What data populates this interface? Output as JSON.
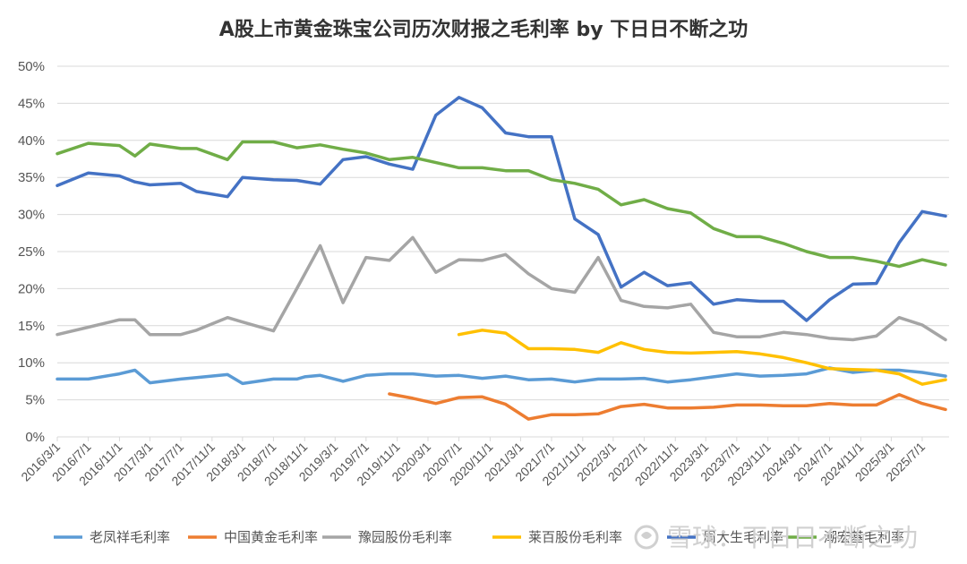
{
  "chart_data": {
    "type": "line",
    "title": "A股上市黄金珠宝公司历次财报之毛利率 by 下日日不断之功",
    "y_ticks": [
      "0%",
      "5%",
      "10%",
      "15%",
      "20%",
      "25%",
      "30%",
      "35%",
      "40%",
      "45%",
      "50%"
    ],
    "ylim": [
      0,
      50
    ],
    "grid": "horizontal",
    "legend_position": "bottom",
    "x_ticks": [
      "2016/3/1",
      "2016/7/1",
      "2016/11/1",
      "2017/3/1",
      "2017/7/1",
      "2017/11/1",
      "2018/3/1",
      "2018/7/1",
      "2018/11/1",
      "2019/3/1",
      "2019/7/1",
      "2019/11/1",
      "2020/3/1",
      "2020/7/1",
      "2020/11/1",
      "2021/3/1",
      "2021/7/1",
      "2021/11/1",
      "2022/3/1",
      "2022/7/1",
      "2022/11/1",
      "2023/3/1",
      "2023/7/1",
      "2023/11/1",
      "2024/3/1",
      "2024/7/1",
      "2024/11/1",
      "2025/3/1",
      "2025/7/1"
    ],
    "series": [
      {
        "name": "老凤祥毛利率",
        "color": "#5B9BD5",
        "points": [
          [
            "2016/3/1",
            7.8
          ],
          [
            "2016/7/1",
            7.8
          ],
          [
            "2016/11/1",
            8.5
          ],
          [
            "2017/1/1",
            9.0
          ],
          [
            "2017/3/1",
            7.3
          ],
          [
            "2017/7/1",
            7.8
          ],
          [
            "2017/9/1",
            8.0
          ],
          [
            "2018/1/1",
            8.4
          ],
          [
            "2018/3/1",
            7.2
          ],
          [
            "2018/7/1",
            7.8
          ],
          [
            "2018/10/1",
            7.8
          ],
          [
            "2018/11/1",
            8.1
          ],
          [
            "2019/1/1",
            8.3
          ],
          [
            "2019/4/1",
            7.5
          ],
          [
            "2019/7/1",
            8.3
          ],
          [
            "2019/10/1",
            8.5
          ],
          [
            "2020/1/1",
            8.5
          ],
          [
            "2020/4/1",
            8.2
          ],
          [
            "2020/7/1",
            8.3
          ],
          [
            "2020/10/1",
            7.9
          ],
          [
            "2021/1/1",
            8.2
          ],
          [
            "2021/4/1",
            7.7
          ],
          [
            "2021/7/1",
            7.8
          ],
          [
            "2021/10/1",
            7.4
          ],
          [
            "2022/1/1",
            7.8
          ],
          [
            "2022/4/1",
            7.8
          ],
          [
            "2022/7/1",
            7.9
          ],
          [
            "2022/10/1",
            7.4
          ],
          [
            "2023/1/1",
            7.7
          ],
          [
            "2023/4/1",
            8.1
          ],
          [
            "2023/7/1",
            8.5
          ],
          [
            "2023/10/1",
            8.2
          ],
          [
            "2024/1/1",
            8.3
          ],
          [
            "2024/4/1",
            8.5
          ],
          [
            "2024/7/1",
            9.3
          ],
          [
            "2024/10/1",
            8.7
          ],
          [
            "2025/1/1",
            9.0
          ],
          [
            "2025/4/1",
            9.0
          ],
          [
            "2025/7/1",
            8.7
          ],
          [
            "2025/10/1",
            8.2
          ]
        ]
      },
      {
        "name": "中国黄金毛利率",
        "color": "#ED7D31",
        "points": [
          [
            "2019/10/1",
            5.8
          ],
          [
            "2020/1/1",
            5.2
          ],
          [
            "2020/4/1",
            4.5
          ],
          [
            "2020/7/1",
            5.3
          ],
          [
            "2020/10/1",
            5.4
          ],
          [
            "2021/1/1",
            4.4
          ],
          [
            "2021/4/1",
            2.4
          ],
          [
            "2021/7/1",
            3.0
          ],
          [
            "2021/10/1",
            3.0
          ],
          [
            "2022/1/1",
            3.1
          ],
          [
            "2022/4/1",
            4.1
          ],
          [
            "2022/7/1",
            4.4
          ],
          [
            "2022/10/1",
            3.9
          ],
          [
            "2023/1/1",
            3.9
          ],
          [
            "2023/4/1",
            4.0
          ],
          [
            "2023/7/1",
            4.3
          ],
          [
            "2023/10/1",
            4.3
          ],
          [
            "2024/1/1",
            4.2
          ],
          [
            "2024/4/1",
            4.2
          ],
          [
            "2024/7/1",
            4.5
          ],
          [
            "2024/10/1",
            4.3
          ],
          [
            "2025/1/1",
            4.3
          ],
          [
            "2025/4/1",
            5.7
          ],
          [
            "2025/7/1",
            4.5
          ],
          [
            "2025/10/1",
            3.7
          ]
        ]
      },
      {
        "name": "豫园股份毛利率",
        "color": "#A5A5A5",
        "points": [
          [
            "2016/3/1",
            13.8
          ],
          [
            "2016/7/1",
            14.8
          ],
          [
            "2016/11/1",
            15.8
          ],
          [
            "2017/1/1",
            15.8
          ],
          [
            "2017/3/1",
            13.8
          ],
          [
            "2017/7/1",
            13.8
          ],
          [
            "2017/9/1",
            14.4
          ],
          [
            "2018/1/1",
            16.1
          ],
          [
            "2018/3/1",
            15.5
          ],
          [
            "2018/7/1",
            14.3
          ],
          [
            "2018/10/1",
            20.0
          ],
          [
            "2019/1/1",
            25.8
          ],
          [
            "2019/4/1",
            18.1
          ],
          [
            "2019/7/1",
            24.2
          ],
          [
            "2019/10/1",
            23.8
          ],
          [
            "2020/1/1",
            26.9
          ],
          [
            "2020/4/1",
            22.2
          ],
          [
            "2020/7/1",
            23.9
          ],
          [
            "2020/10/1",
            23.8
          ],
          [
            "2021/1/1",
            24.6
          ],
          [
            "2021/4/1",
            22.0
          ],
          [
            "2021/7/1",
            20.0
          ],
          [
            "2021/10/1",
            19.5
          ],
          [
            "2022/1/1",
            24.2
          ],
          [
            "2022/4/1",
            18.4
          ],
          [
            "2022/7/1",
            17.6
          ],
          [
            "2022/10/1",
            17.4
          ],
          [
            "2023/1/1",
            17.9
          ],
          [
            "2023/4/1",
            14.1
          ],
          [
            "2023/7/1",
            13.5
          ],
          [
            "2023/10/1",
            13.5
          ],
          [
            "2024/1/1",
            14.1
          ],
          [
            "2024/4/1",
            13.8
          ],
          [
            "2024/7/1",
            13.3
          ],
          [
            "2024/10/1",
            13.1
          ],
          [
            "2025/1/1",
            13.6
          ],
          [
            "2025/4/1",
            16.1
          ],
          [
            "2025/7/1",
            15.1
          ],
          [
            "2025/10/1",
            13.1
          ]
        ]
      },
      {
        "name": "莱百股份毛利率",
        "color": "#FFC000",
        "points": [
          [
            "2020/7/1",
            13.8
          ],
          [
            "2020/10/1",
            14.4
          ],
          [
            "2021/1/1",
            14.0
          ],
          [
            "2021/4/1",
            11.9
          ],
          [
            "2021/7/1",
            11.9
          ],
          [
            "2021/10/1",
            11.8
          ],
          [
            "2022/1/1",
            11.4
          ],
          [
            "2022/4/1",
            12.7
          ],
          [
            "2022/7/1",
            11.8
          ],
          [
            "2022/10/1",
            11.4
          ],
          [
            "2023/1/1",
            11.3
          ],
          [
            "2023/4/1",
            11.4
          ],
          [
            "2023/7/1",
            11.5
          ],
          [
            "2023/10/1",
            11.2
          ],
          [
            "2024/1/1",
            10.7
          ],
          [
            "2024/4/1",
            10.0
          ],
          [
            "2024/7/1",
            9.2
          ],
          [
            "2024/10/1",
            9.1
          ],
          [
            "2025/1/1",
            9.0
          ],
          [
            "2025/4/1",
            8.5
          ],
          [
            "2025/7/1",
            7.1
          ],
          [
            "2025/10/1",
            7.7
          ]
        ]
      },
      {
        "name": "周大生毛利率",
        "color": "#4472C4",
        "points": [
          [
            "2016/3/1",
            33.9
          ],
          [
            "2016/7/1",
            35.6
          ],
          [
            "2016/11/1",
            35.2
          ],
          [
            "2017/1/1",
            34.4
          ],
          [
            "2017/3/1",
            34.0
          ],
          [
            "2017/7/1",
            34.2
          ],
          [
            "2017/9/1",
            33.1
          ],
          [
            "2018/1/1",
            32.4
          ],
          [
            "2018/3/1",
            35.0
          ],
          [
            "2018/7/1",
            34.7
          ],
          [
            "2018/10/1",
            34.6
          ],
          [
            "2019/1/1",
            34.1
          ],
          [
            "2019/4/1",
            37.4
          ],
          [
            "2019/7/1",
            37.8
          ],
          [
            "2019/10/1",
            36.8
          ],
          [
            "2020/1/1",
            36.1
          ],
          [
            "2020/4/1",
            43.4
          ],
          [
            "2020/7/1",
            45.8
          ],
          [
            "2020/10/1",
            44.4
          ],
          [
            "2021/1/1",
            41.0
          ],
          [
            "2021/4/1",
            40.5
          ],
          [
            "2021/7/1",
            40.5
          ],
          [
            "2021/10/1",
            29.4
          ],
          [
            "2022/1/1",
            27.3
          ],
          [
            "2022/4/1",
            20.2
          ],
          [
            "2022/7/1",
            22.2
          ],
          [
            "2022/10/1",
            20.4
          ],
          [
            "2023/1/1",
            20.8
          ],
          [
            "2023/4/1",
            17.9
          ],
          [
            "2023/7/1",
            18.5
          ],
          [
            "2023/10/1",
            18.3
          ],
          [
            "2024/1/1",
            18.3
          ],
          [
            "2024/4/1",
            15.7
          ],
          [
            "2024/7/1",
            18.5
          ],
          [
            "2024/10/1",
            20.6
          ],
          [
            "2025/1/1",
            20.7
          ],
          [
            "2025/4/1",
            26.2
          ],
          [
            "2025/7/1",
            30.4
          ],
          [
            "2025/10/1",
            29.8
          ]
        ]
      },
      {
        "name": "潮宏基毛利率",
        "color": "#70AD47",
        "points": [
          [
            "2016/3/1",
            38.2
          ],
          [
            "2016/7/1",
            39.6
          ],
          [
            "2016/11/1",
            39.3
          ],
          [
            "2017/1/1",
            37.9
          ],
          [
            "2017/3/1",
            39.5
          ],
          [
            "2017/7/1",
            38.9
          ],
          [
            "2017/9/1",
            38.9
          ],
          [
            "2018/1/1",
            37.4
          ],
          [
            "2018/3/1",
            39.8
          ],
          [
            "2018/7/1",
            39.8
          ],
          [
            "2018/10/1",
            39.0
          ],
          [
            "2019/1/1",
            39.4
          ],
          [
            "2019/4/1",
            38.8
          ],
          [
            "2019/7/1",
            38.3
          ],
          [
            "2019/10/1",
            37.4
          ],
          [
            "2020/1/1",
            37.7
          ],
          [
            "2020/4/1",
            37.0
          ],
          [
            "2020/7/1",
            36.3
          ],
          [
            "2020/10/1",
            36.3
          ],
          [
            "2021/1/1",
            35.9
          ],
          [
            "2021/4/1",
            35.9
          ],
          [
            "2021/7/1",
            34.7
          ],
          [
            "2021/10/1",
            34.2
          ],
          [
            "2022/1/1",
            33.4
          ],
          [
            "2022/4/1",
            31.3
          ],
          [
            "2022/7/1",
            32.0
          ],
          [
            "2022/10/1",
            30.8
          ],
          [
            "2023/1/1",
            30.2
          ],
          [
            "2023/4/1",
            28.1
          ],
          [
            "2023/7/1",
            27.0
          ],
          [
            "2023/10/1",
            27.0
          ],
          [
            "2024/1/1",
            26.1
          ],
          [
            "2024/4/1",
            25.0
          ],
          [
            "2024/7/1",
            24.2
          ],
          [
            "2024/10/1",
            24.2
          ],
          [
            "2025/1/1",
            23.7
          ],
          [
            "2025/4/1",
            23.0
          ],
          [
            "2025/7/1",
            23.9
          ],
          [
            "2025/10/1",
            23.2
          ]
        ]
      }
    ]
  },
  "watermark": {
    "text": "雪球：下日日不断之功",
    "logo": "snowball-logo"
  }
}
